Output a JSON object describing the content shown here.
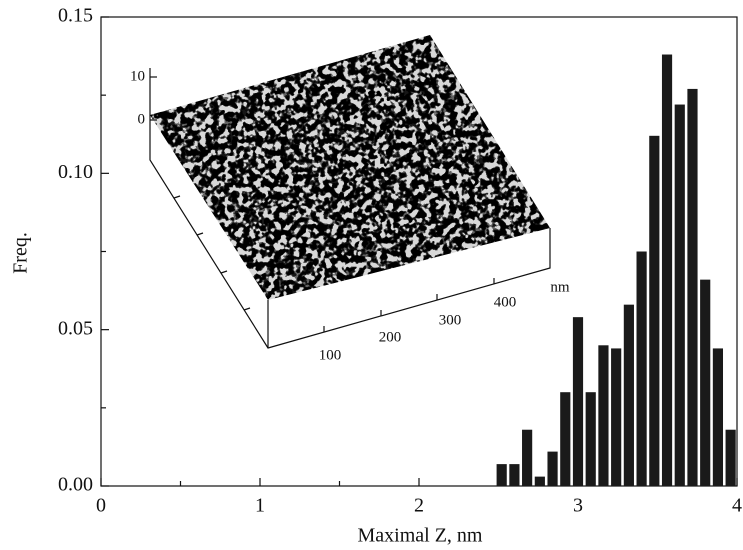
{
  "chart_data": {
    "type": "histogram",
    "xlabel": "Maximal Z, nm",
    "ylabel": "Freq.",
    "bins": [
      2.48,
      2.56,
      2.64,
      2.72,
      2.8,
      2.88,
      2.96,
      3.04,
      3.12,
      3.2,
      3.28,
      3.36,
      3.44,
      3.52,
      3.6,
      3.68,
      3.76,
      3.84,
      3.92,
      4.0
    ],
    "values": [
      0.007,
      0.007,
      0.018,
      0.003,
      0.011,
      0.03,
      0.054,
      0.03,
      0.045,
      0.044,
      0.058,
      0.075,
      0.112,
      0.138,
      0.122,
      0.127,
      0.066,
      0.044,
      0.018
    ],
    "color": "#1a1a1a",
    "xlim": [
      0,
      4
    ],
    "xticks": [
      0,
      1,
      2,
      3,
      4
    ],
    "xminor_ticks": [
      0.5,
      1.5,
      2.5,
      3.5
    ],
    "ylim": [
      0,
      0.15
    ],
    "yticks": [
      {
        "value": 0,
        "label": "0.00"
      },
      {
        "value": 0.05,
        "label": "0.05"
      },
      {
        "value": 0.1,
        "label": "0.10"
      },
      {
        "value": 0.15,
        "label": "0.15"
      }
    ],
    "yminor_ticks": [
      0.025,
      0.075,
      0.125
    ],
    "inset": {
      "z_ticks": [
        10,
        0
      ],
      "xy_ticks": [
        100,
        200,
        300,
        400
      ],
      "unit": "nm"
    }
  }
}
